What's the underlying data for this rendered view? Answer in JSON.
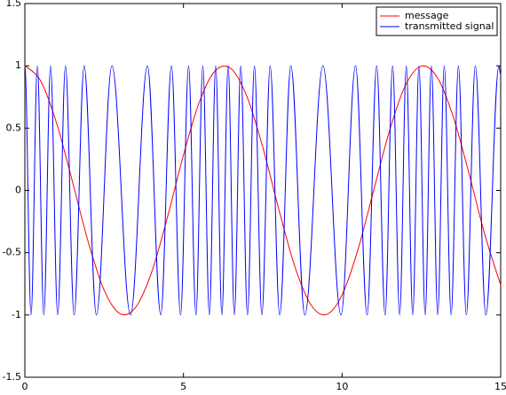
{
  "chart_data": {
    "type": "line",
    "xlim": [
      0,
      15
    ],
    "ylim": [
      -1.5,
      1.5
    ],
    "xticks": [
      0,
      5,
      10,
      15
    ],
    "yticks": [
      -1.5,
      -1,
      -0.5,
      0,
      0.5,
      1,
      1.5
    ],
    "legend": "upper right",
    "series": [
      {
        "name": "message",
        "color": "#ff0000",
        "x": [
          0,
          0.5,
          1,
          1.5,
          2,
          2.5,
          3,
          3.5,
          4,
          4.5,
          5,
          5.5,
          6,
          6.5,
          7,
          7.5,
          8,
          8.5,
          9,
          9.5,
          10,
          10.5,
          11,
          11.5,
          12,
          12.5,
          13,
          13.5,
          14,
          14.5,
          15
        ],
        "values": [
          1,
          0.878,
          0.54,
          0.071,
          -0.416,
          -0.801,
          -0.99,
          -0.936,
          -0.654,
          -0.211,
          0.284,
          0.709,
          0.96,
          0.977,
          0.754,
          0.347,
          -0.146,
          -0.602,
          -0.911,
          -0.997,
          -0.839,
          -0.476,
          0.004,
          0.483,
          0.844,
          0.998,
          0.907,
          0.595,
          0.137,
          -0.355,
          -0.76
        ]
      },
      {
        "name": "transmitted signal",
        "color": "#0000ff",
        "x": [
          0,
          0.196,
          0.394,
          0.598,
          0.81,
          1.035,
          1.28,
          1.553,
          1.869,
          2.255,
          2.746,
          3.33,
          3.864,
          4.284,
          4.622,
          4.908,
          5.162,
          5.393,
          5.611,
          5.816,
          6.016,
          6.212,
          6.408,
          6.605,
          6.806,
          7.018,
          7.237,
          7.471,
          7.733,
          8.034,
          8.385,
          8.825,
          9.398,
          9.967,
          10.426,
          10.789,
          11.092,
          11.356,
          11.595,
          11.816,
          12.025,
          12.228,
          12.424,
          12.62,
          12.816,
          13.015,
          13.221,
          13.437,
          13.667,
          13.918,
          14.201,
          14.533,
          14.944,
          15
        ],
        "values": [
          1,
          -1,
          1,
          -1,
          1,
          -1,
          1,
          -1,
          1,
          -1,
          1,
          -1,
          1,
          -1,
          1,
          -1,
          1,
          -1,
          1,
          -1,
          1,
          -1,
          1,
          -1,
          1,
          -1,
          1,
          -1,
          1,
          -1,
          1,
          -1,
          1,
          -1,
          1,
          -1,
          1,
          -1,
          1,
          -1,
          1,
          -1,
          1,
          -1,
          1,
          -1,
          1,
          -1,
          1,
          -1,
          1,
          -1,
          1,
          0.93
        ]
      }
    ]
  }
}
